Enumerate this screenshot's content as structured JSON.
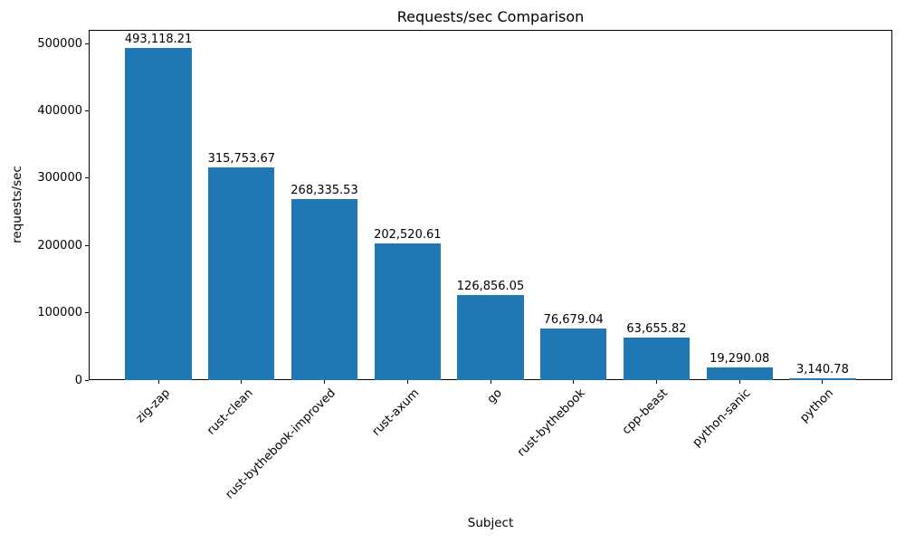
{
  "chart_data": {
    "type": "bar",
    "title": "Requests/sec Comparison",
    "xlabel": "Subject",
    "ylabel": "requests/sec",
    "categories": [
      "zig-zap",
      "rust-clean",
      "rust-bythebook-improved",
      "rust-axum",
      "go",
      "rust-bythebook",
      "cpp-beast",
      "python-sanic",
      "python"
    ],
    "values": [
      493118.21,
      315753.67,
      268335.53,
      202520.61,
      126856.05,
      76679.04,
      63655.82,
      19290.08,
      3140.78
    ],
    "value_labels": [
      "493,118.21",
      "315,753.67",
      "268,335.53",
      "202,520.61",
      "126,856.05",
      "76,679.04",
      "63,655.82",
      "19,290.08",
      "3,140.78"
    ],
    "yticks": [
      0,
      100000,
      200000,
      300000,
      400000,
      500000
    ],
    "ytick_labels": [
      "0",
      "100000",
      "200000",
      "300000",
      "400000",
      "500000"
    ],
    "ylim": [
      0,
      520160
    ],
    "xlim": [
      -0.84,
      8.84
    ],
    "bar_width_fraction": 0.8,
    "bar_color": "#1f77b4",
    "text_color": "#000000",
    "background_color": "#ffffff",
    "grid": false,
    "legend": null
  }
}
